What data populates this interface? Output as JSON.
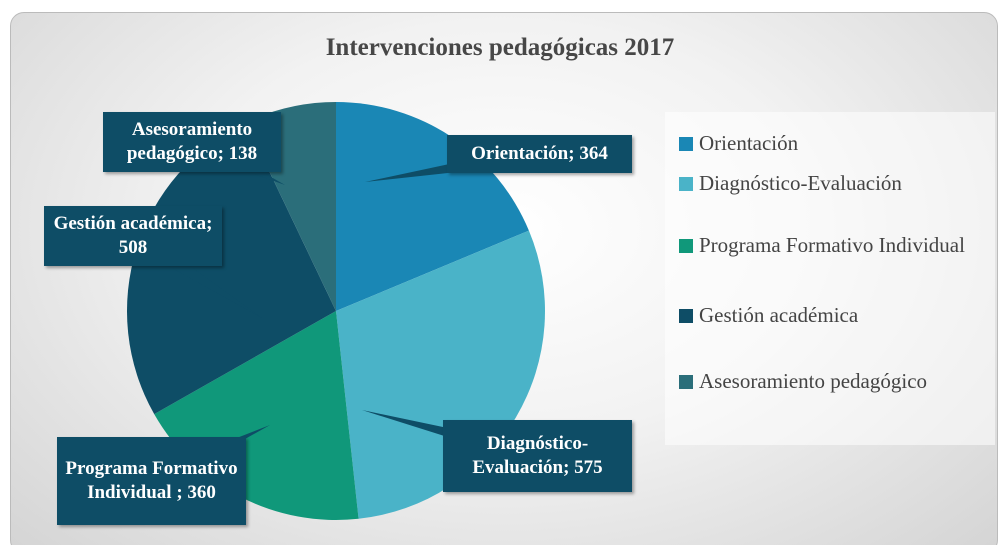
{
  "chart_data": {
    "type": "pie",
    "title": "Intervenciones pedagógicas 2017",
    "categories": [
      "Orientación",
      "Diagnóstico-Evaluación",
      "Programa Formativo Individual",
      "Gestión académica",
      "Asesoramiento pedagógico"
    ],
    "values": [
      364,
      575,
      360,
      508,
      138
    ],
    "value_labels": [
      "Orientación; 364",
      "Diagnóstico-Evaluación; 575",
      "Programa Formativo Individual ; 360",
      "Gestión académica; 508",
      "Asesoramiento pedagógico; 138"
    ],
    "colors": [
      "#1a87b5",
      "#4ab3c8",
      "#10987a",
      "#0e4d66",
      "#2b6e7a"
    ],
    "legend": "right"
  }
}
